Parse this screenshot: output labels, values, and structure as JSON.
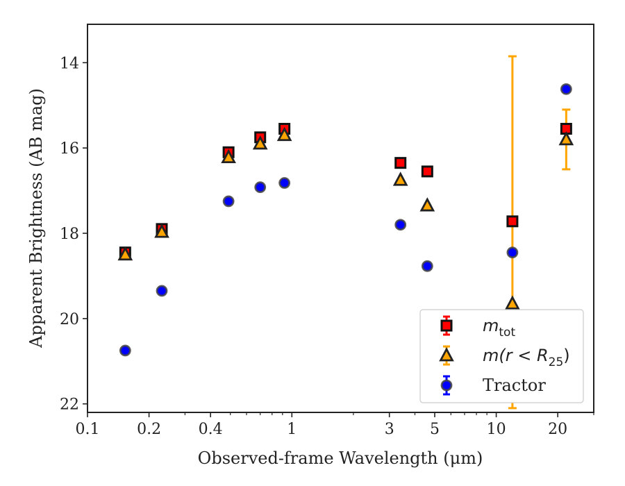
{
  "chart_data": {
    "type": "scatter",
    "xlabel": "Observed-frame Wavelength (μm)",
    "ylabel": "Apparent Brightness (AB mag)",
    "x_scale": "log",
    "xlim": [
      0.1,
      30
    ],
    "ylim": [
      22.2,
      13.1
    ],
    "y_inverted": true,
    "x_ticks": [
      0.1,
      0.2,
      0.4,
      1,
      3,
      5,
      10,
      20
    ],
    "x_tick_labels": [
      "0.1",
      "0.2",
      "0.4",
      "1",
      "3",
      "5",
      "10",
      "20"
    ],
    "y_ticks": [
      14,
      16,
      18,
      20,
      22
    ],
    "y_tick_labels": [
      "14",
      "16",
      "18",
      "20",
      "22"
    ],
    "grid": false,
    "legend_position": "bottom-right",
    "series": [
      {
        "name": "m_tot",
        "legend_label": "m",
        "legend_sub": "tot",
        "marker": "square",
        "color": "#ff0000",
        "edge_color": "#111111",
        "x": [
          0.153,
          0.231,
          0.49,
          0.7,
          0.92,
          3.4,
          4.6,
          12.0,
          22.0
        ],
        "y": [
          18.45,
          17.9,
          16.1,
          15.75,
          15.55,
          16.35,
          16.55,
          17.72,
          15.55
        ],
        "yerr": [
          null,
          null,
          null,
          null,
          null,
          null,
          null,
          null,
          null
        ]
      },
      {
        "name": "m(r < R_25)",
        "legend_label": "m(r < R",
        "legend_sub": "25",
        "legend_suffix": ")",
        "marker": "triangle",
        "color": "#ffa500",
        "edge_color": "#222222",
        "x": [
          0.153,
          0.231,
          0.49,
          0.7,
          0.92,
          3.4,
          4.6,
          12.0,
          22.0
        ],
        "y": [
          18.5,
          17.97,
          16.22,
          15.9,
          15.7,
          16.75,
          17.35,
          19.65,
          15.8
        ],
        "yerr_low": [
          null,
          null,
          null,
          null,
          null,
          null,
          null,
          5.8,
          0.7
        ],
        "yerr_high": [
          null,
          null,
          null,
          null,
          null,
          null,
          null,
          2.45,
          0.7
        ]
      },
      {
        "name": "Tractor",
        "legend_label": "Tractor",
        "marker": "circle",
        "color": "#0000ff",
        "edge_color": "#444444",
        "x": [
          0.153,
          0.231,
          0.49,
          0.7,
          0.92,
          3.4,
          4.6,
          12.0,
          22.0
        ],
        "y": [
          20.75,
          19.35,
          17.25,
          16.92,
          16.82,
          17.8,
          18.77,
          18.45,
          14.62
        ]
      }
    ]
  }
}
